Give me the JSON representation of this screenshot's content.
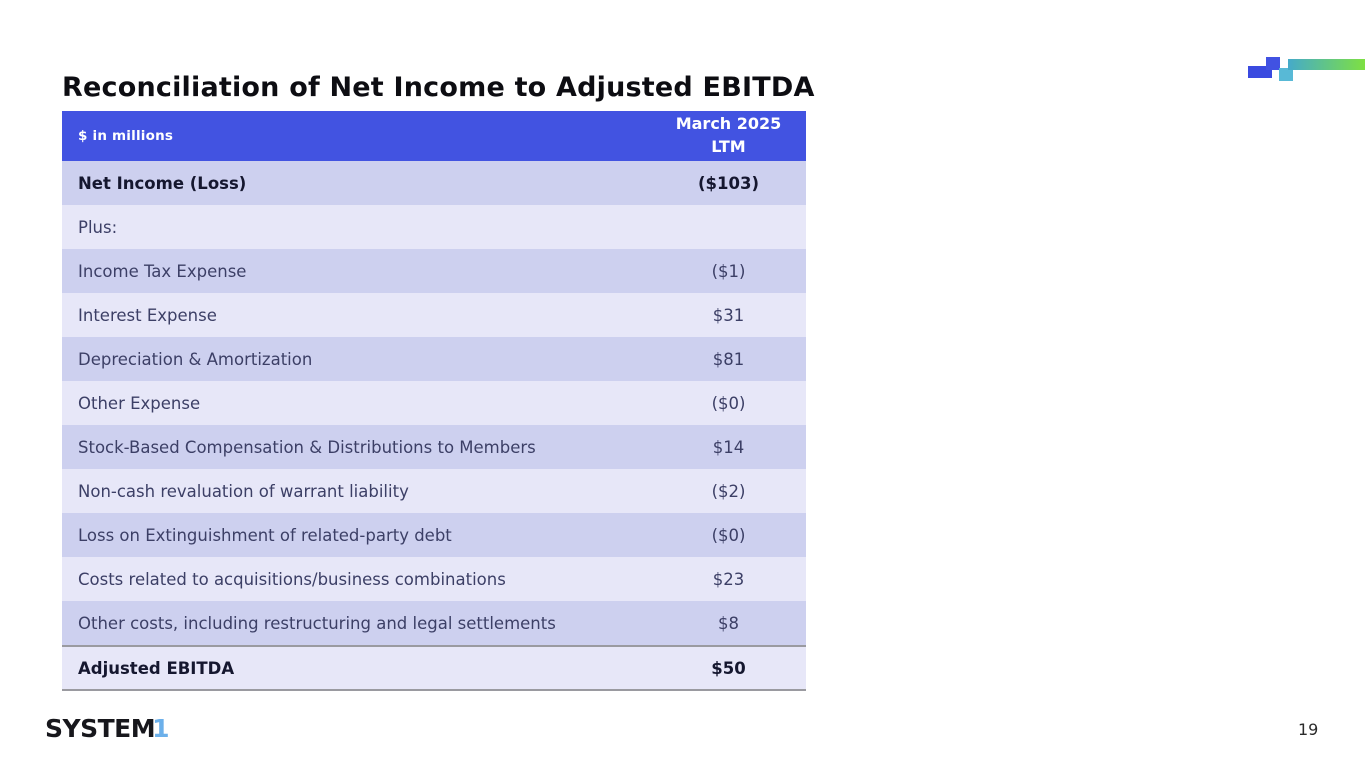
{
  "slide": {
    "title": "Reconciliation of Net Income to Adjusted EBITDA",
    "page_number": "19",
    "logo": {
      "text_black": "SYSTEM",
      "text_blue": "1"
    }
  },
  "table": {
    "header": {
      "left_label": "$ in millions",
      "column_line1": "March 2025",
      "column_line2": "LTM"
    },
    "rows": [
      {
        "label": "Net Income (Loss)",
        "value": "($103)",
        "bold": true,
        "total": false
      },
      {
        "label": "Plus:",
        "value": "",
        "bold": false,
        "total": false
      },
      {
        "label": "Income Tax Expense",
        "value": "($1)",
        "bold": false,
        "total": false
      },
      {
        "label": "Interest Expense",
        "value": "$31",
        "bold": false,
        "total": false
      },
      {
        "label": "Depreciation & Amortization",
        "value": "$81",
        "bold": false,
        "total": false
      },
      {
        "label": "Other Expense",
        "value": "($0)",
        "bold": false,
        "total": false
      },
      {
        "label": "Stock-Based Compensation & Distributions to Members",
        "value": "$14",
        "bold": false,
        "total": false
      },
      {
        "label": "Non-cash revaluation of warrant liability",
        "value": "($2)",
        "bold": false,
        "total": false
      },
      {
        "label": "Loss on Extinguishment of related-party debt",
        "value": "($0)",
        "bold": false,
        "total": false
      },
      {
        "label": "Costs related to acquisitions/business combinations",
        "value": "$23",
        "bold": false,
        "total": false
      },
      {
        "label": "Other costs, including restructuring and legal settlements",
        "value": "$8",
        "bold": false,
        "total": false
      },
      {
        "label": "Adjusted EBITDA",
        "value": "$50",
        "bold": true,
        "total": true
      }
    ]
  },
  "chart_data": {
    "type": "table",
    "title": "Reconciliation of Net Income to Adjusted EBITDA",
    "units": "$ in millions",
    "period": "March 2025 LTM",
    "rows": [
      {
        "item": "Net Income (Loss)",
        "display": "($103)",
        "value": -103
      },
      {
        "item": "Plus:",
        "display": "",
        "value": null
      },
      {
        "item": "Income Tax Expense",
        "display": "($1)",
        "value": -1
      },
      {
        "item": "Interest Expense",
        "display": "$31",
        "value": 31
      },
      {
        "item": "Depreciation & Amortization",
        "display": "$81",
        "value": 81
      },
      {
        "item": "Other Expense",
        "display": "($0)",
        "value": 0
      },
      {
        "item": "Stock-Based Compensation & Distributions to Members",
        "display": "$14",
        "value": 14
      },
      {
        "item": "Non-cash revaluation of warrant liability",
        "display": "($2)",
        "value": -2
      },
      {
        "item": "Loss on Extinguishment of related-party debt",
        "display": "($0)",
        "value": 0
      },
      {
        "item": "Costs related to acquisitions/business combinations",
        "display": "$23",
        "value": 23
      },
      {
        "item": "Other costs, including restructuring and legal settlements",
        "display": "$8",
        "value": 8
      },
      {
        "item": "Adjusted EBITDA",
        "display": "$50",
        "value": 50
      }
    ]
  },
  "colors": {
    "header_blue": "#4253e1",
    "row_shade_dark": "#cdd0ef",
    "row_shade_light": "#e7e7f8",
    "row_text": "#3c3f66",
    "bold_text": "#15172f",
    "logo_blue": "#6cb0ea",
    "deco_gradient_start": "#45aaca",
    "deco_gradient_end": "#7ee042"
  }
}
